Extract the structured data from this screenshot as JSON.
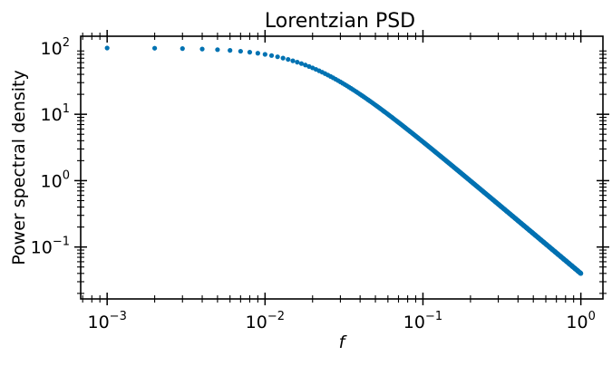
{
  "chart_data": {
    "type": "scatter",
    "title": "Lorentzian PSD",
    "xlabel": "f",
    "ylabel": "Power spectral density",
    "xscale": "log",
    "yscale": "log",
    "xlim": [
      0.00068,
      1.38
    ],
    "ylim": [
      0.0165,
      150
    ],
    "grid": false,
    "marker_color": "#0072b2",
    "x_ticks": [
      {
        "value": 0.001,
        "base": "10",
        "exp": "−3"
      },
      {
        "value": 0.01,
        "base": "10",
        "exp": "−2"
      },
      {
        "value": 0.1,
        "base": "10",
        "exp": "−1"
      },
      {
        "value": 1,
        "base": "10",
        "exp": "0"
      }
    ],
    "y_ticks": [
      {
        "value": 0.1,
        "base": "10",
        "exp": "−1"
      },
      {
        "value": 1,
        "base": "10",
        "exp": "0"
      },
      {
        "value": 10,
        "base": "10",
        "exp": "1"
      },
      {
        "value": 100,
        "base": "10",
        "exp": "2"
      }
    ],
    "series": [
      {
        "x_start": 0.001,
        "x_step": 0.001,
        "count": 1000,
        "formula_points": "y = 100 / (1 + (f/0.02)^2)",
        "sample_points": [
          {
            "x": 0.001,
            "y": 99.75
          },
          {
            "x": 0.002,
            "y": 99.0
          },
          {
            "x": 0.005,
            "y": 94.1
          },
          {
            "x": 0.01,
            "y": 80.0
          },
          {
            "x": 0.02,
            "y": 50.0
          },
          {
            "x": 0.05,
            "y": 13.8
          },
          {
            "x": 0.1,
            "y": 3.85
          },
          {
            "x": 0.5,
            "y": 0.16
          },
          {
            "x": 1.0,
            "y": 0.04
          }
        ]
      }
    ]
  }
}
